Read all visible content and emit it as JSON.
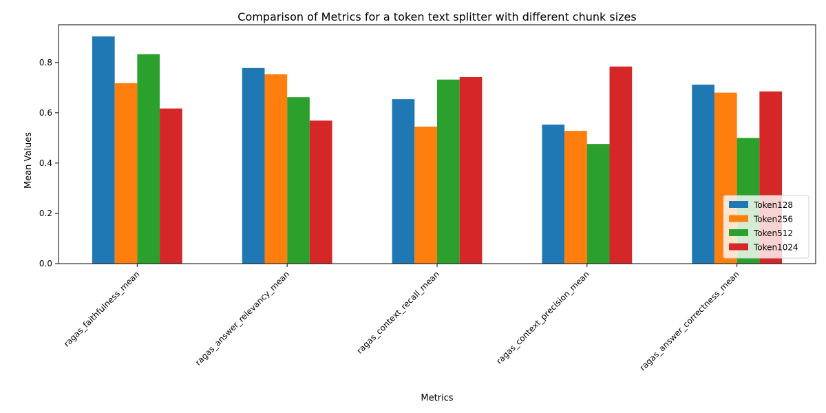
{
  "chart_data": {
    "type": "bar",
    "title": "Comparison of Metrics for a token text splitter with different chunk sizes",
    "xlabel": "Metrics",
    "ylabel": "Mean Values",
    "categories": [
      "ragas_faithfulness_mean",
      "ragas_answer_relevancy_mean",
      "ragas_context_recall_mean",
      "ragas_context_precision_mean",
      "ragas_answer_correctness_mean"
    ],
    "series": [
      {
        "name": "Token128",
        "color": "#1f77b4",
        "values": [
          0.904,
          0.778,
          0.654,
          0.553,
          0.712
        ]
      },
      {
        "name": "Token256",
        "color": "#ff7f0e",
        "values": [
          0.718,
          0.753,
          0.545,
          0.528,
          0.68
        ]
      },
      {
        "name": "Token512",
        "color": "#2ca02c",
        "values": [
          0.833,
          0.662,
          0.732,
          0.476,
          0.5
        ]
      },
      {
        "name": "Token1024",
        "color": "#d62728",
        "values": [
          0.617,
          0.569,
          0.742,
          0.784,
          0.685
        ]
      }
    ],
    "ylim": [
      0,
      0.95
    ],
    "yticks": [
      0.0,
      0.2,
      0.4,
      0.6,
      0.8
    ],
    "ytick_labels": [
      "0.0",
      "0.2",
      "0.4",
      "0.6",
      "0.8"
    ],
    "grid": false,
    "legend_position": "lower right"
  }
}
